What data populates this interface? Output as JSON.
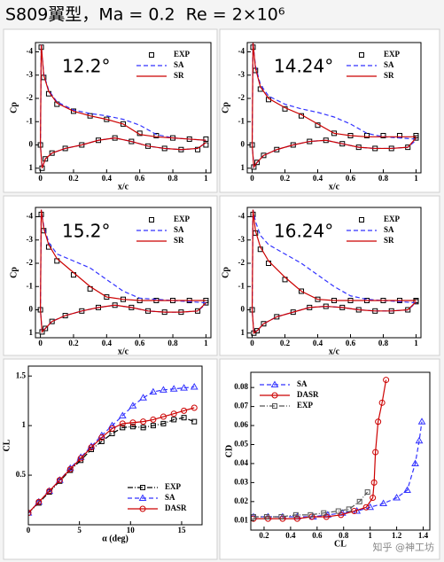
{
  "title": "S809翼型，Ma = 0.2  Re = 2×10⁶",
  "watermark": "知乎 @神工坊",
  "chart_data": [
    {
      "type": "line",
      "annotation": "12.2°",
      "xlabel": "x/c",
      "ylabel": "Cp",
      "legend": "upper right",
      "xlim": [
        -0.03,
        1.03
      ],
      "xticks": [
        0,
        0.2,
        0.4,
        0.6,
        0.8,
        1
      ],
      "ylim": [
        1.2,
        -4.4
      ],
      "yticks": [
        -4,
        -3,
        -2,
        -1,
        0,
        1
      ],
      "x": [
        1,
        0.9,
        0.8,
        0.7,
        0.6,
        0.5,
        0.4,
        0.3,
        0.2,
        0.1,
        0.05,
        0.02,
        0.005,
        0,
        0.01,
        0.03,
        0.07,
        0.15,
        0.25,
        0.35,
        0.45,
        0.55,
        0.65,
        0.75,
        0.85,
        0.95,
        1
      ],
      "series": [
        {
          "name": "EXP",
          "color": "#000000",
          "line": "none",
          "marker": "square",
          "values": [
            -0.25,
            -0.25,
            -0.3,
            -0.4,
            -0.5,
            -0.9,
            -1.1,
            -1.25,
            -1.45,
            -1.75,
            -2.2,
            -2.9,
            -4.2,
            0,
            1,
            0.6,
            0.35,
            0.15,
            0,
            -0.2,
            -0.3,
            -0.15,
            0.05,
            0.15,
            0.2,
            0.2,
            0
          ]
        },
        {
          "name": "SA",
          "color": "#3333ff",
          "line": "dash",
          "marker": "none",
          "values": [
            -0.2,
            -0.25,
            -0.3,
            -0.45,
            -0.85,
            -1.1,
            -1.25,
            -1.35,
            -1.5,
            -1.85,
            -2.35,
            -3.05,
            -4.3,
            0,
            1,
            0.6,
            0.35,
            0.15,
            0,
            -0.2,
            -0.3,
            -0.15,
            0.05,
            0.15,
            0.2,
            0.15,
            -0.1
          ]
        },
        {
          "name": "SR",
          "color": "#cc0000",
          "line": "solid",
          "marker": "none",
          "values": [
            -0.2,
            -0.25,
            -0.3,
            -0.35,
            -0.45,
            -0.9,
            -1.1,
            -1.25,
            -1.45,
            -1.8,
            -2.3,
            -3.0,
            -4.3,
            0,
            1,
            0.6,
            0.35,
            0.15,
            0,
            -0.2,
            -0.3,
            -0.15,
            0.05,
            0.15,
            0.2,
            0.15,
            -0.1
          ]
        }
      ]
    },
    {
      "type": "line",
      "annotation": "14.24°",
      "xlabel": "x/c",
      "ylabel": "Cp",
      "legend": "upper right",
      "xlim": [
        -0.03,
        1.03
      ],
      "xticks": [
        0,
        0.2,
        0.4,
        0.6,
        0.8,
        1
      ],
      "ylim": [
        1.2,
        -4.4
      ],
      "yticks": [
        -4,
        -3,
        -2,
        -1,
        0,
        1
      ],
      "x": [
        1,
        0.9,
        0.8,
        0.7,
        0.6,
        0.5,
        0.4,
        0.3,
        0.2,
        0.1,
        0.05,
        0.02,
        0.005,
        0,
        0.01,
        0.03,
        0.07,
        0.15,
        0.25,
        0.35,
        0.45,
        0.55,
        0.65,
        0.75,
        0.85,
        0.95,
        1
      ],
      "series": [
        {
          "name": "EXP",
          "color": "#000000",
          "line": "none",
          "marker": "square",
          "values": [
            -0.4,
            -0.4,
            -0.4,
            -0.4,
            -0.4,
            -0.5,
            -0.85,
            -1.25,
            -1.55,
            -1.95,
            -2.4,
            -3.2,
            -4.2,
            0,
            0.95,
            0.75,
            0.45,
            0.2,
            0,
            -0.15,
            -0.2,
            -0.05,
            0.1,
            0.15,
            0.15,
            0.1,
            -0.3
          ]
        },
        {
          "name": "SA",
          "color": "#3333ff",
          "line": "dash",
          "marker": "none",
          "values": [
            -0.25,
            -0.3,
            -0.35,
            -0.5,
            -0.9,
            -1.2,
            -1.4,
            -1.55,
            -1.75,
            -2.1,
            -2.6,
            -3.4,
            -4.4,
            0,
            0.95,
            0.75,
            0.45,
            0.2,
            0,
            -0.15,
            -0.2,
            -0.05,
            0.1,
            0.15,
            0.15,
            0.1,
            -0.2
          ]
        },
        {
          "name": "SR",
          "color": "#cc0000",
          "line": "solid",
          "marker": "none",
          "values": [
            -0.35,
            -0.35,
            -0.35,
            -0.35,
            -0.4,
            -0.5,
            -0.9,
            -1.3,
            -1.6,
            -2.0,
            -2.5,
            -3.3,
            -4.4,
            0,
            0.95,
            0.75,
            0.45,
            0.2,
            0,
            -0.15,
            -0.2,
            -0.05,
            0.1,
            0.15,
            0.15,
            0.1,
            -0.3
          ]
        }
      ]
    },
    {
      "type": "line",
      "annotation": "15.2°",
      "xlabel": "x/c",
      "ylabel": "Cp",
      "legend": "upper right",
      "xlim": [
        -0.03,
        1.03
      ],
      "xticks": [
        0,
        0.2,
        0.4,
        0.6,
        0.8,
        1
      ],
      "ylim": [
        1.2,
        -4.4
      ],
      "yticks": [
        -4,
        -3,
        -2,
        -1,
        0,
        1
      ],
      "x": [
        1,
        0.9,
        0.8,
        0.7,
        0.6,
        0.5,
        0.4,
        0.3,
        0.2,
        0.1,
        0.05,
        0.02,
        0.005,
        0,
        0.01,
        0.03,
        0.07,
        0.15,
        0.25,
        0.35,
        0.45,
        0.55,
        0.65,
        0.75,
        0.85,
        0.95,
        1
      ],
      "series": [
        {
          "name": "EXP",
          "color": "#000000",
          "line": "none",
          "marker": "square",
          "values": [
            -0.4,
            -0.4,
            -0.4,
            -0.4,
            -0.4,
            -0.45,
            -0.55,
            -0.9,
            -1.5,
            -2.1,
            -2.7,
            -3.4,
            -4.1,
            0,
            0.95,
            0.8,
            0.5,
            0.25,
            0.05,
            -0.1,
            -0.2,
            -0.1,
            0.05,
            0.1,
            0.1,
            0.05,
            -0.3
          ]
        },
        {
          "name": "SA",
          "color": "#3333ff",
          "line": "dash",
          "marker": "none",
          "values": [
            -0.3,
            -0.35,
            -0.4,
            -0.45,
            -0.5,
            -0.8,
            -1.3,
            -1.8,
            -2.1,
            -2.4,
            -2.9,
            -3.6,
            -4.3,
            0,
            0.95,
            0.8,
            0.5,
            0.25,
            0.05,
            -0.1,
            -0.2,
            -0.1,
            0.05,
            0.1,
            0.1,
            0.05,
            -0.25
          ]
        },
        {
          "name": "SR",
          "color": "#cc0000",
          "line": "solid",
          "marker": "none",
          "values": [
            -0.4,
            -0.4,
            -0.4,
            -0.4,
            -0.4,
            -0.45,
            -0.55,
            -1.0,
            -1.6,
            -2.2,
            -2.8,
            -3.5,
            -4.3,
            0,
            0.95,
            0.8,
            0.5,
            0.25,
            0.05,
            -0.1,
            -0.2,
            -0.1,
            0.05,
            0.1,
            0.1,
            0.05,
            -0.3
          ]
        }
      ]
    },
    {
      "type": "line",
      "annotation": "16.24°",
      "xlabel": "x/c",
      "ylabel": "Cp",
      "legend": "upper right",
      "xlim": [
        -0.03,
        1.03
      ],
      "xticks": [
        0,
        0.2,
        0.4,
        0.6,
        0.8,
        1
      ],
      "ylim": [
        1.2,
        -4.4
      ],
      "yticks": [
        -4,
        -3,
        -2,
        -1,
        0,
        1
      ],
      "x": [
        1,
        0.9,
        0.8,
        0.7,
        0.6,
        0.5,
        0.4,
        0.3,
        0.2,
        0.1,
        0.05,
        0.02,
        0.005,
        0,
        0.01,
        0.03,
        0.07,
        0.15,
        0.25,
        0.35,
        0.45,
        0.55,
        0.65,
        0.75,
        0.85,
        0.95,
        1
      ],
      "series": [
        {
          "name": "EXP",
          "color": "#000000",
          "line": "none",
          "marker": "square",
          "values": [
            -0.4,
            -0.4,
            -0.4,
            -0.4,
            -0.4,
            -0.4,
            -0.45,
            -0.8,
            -1.3,
            -2.0,
            -2.6,
            -3.3,
            -4.1,
            0,
            1,
            0.9,
            0.6,
            0.3,
            0.1,
            -0.1,
            -0.15,
            -0.1,
            0,
            0.05,
            0.05,
            0,
            -0.35
          ]
        },
        {
          "name": "SA",
          "color": "#3333ff",
          "line": "dash",
          "marker": "none",
          "values": [
            -0.3,
            -0.35,
            -0.4,
            -0.45,
            -0.6,
            -1.0,
            -1.5,
            -2.0,
            -2.4,
            -2.8,
            -3.2,
            -3.8,
            -4.3,
            0,
            1,
            0.9,
            0.6,
            0.3,
            0.1,
            -0.1,
            -0.15,
            -0.1,
            0,
            0.05,
            0.05,
            0,
            -0.3
          ]
        },
        {
          "name": "SR",
          "color": "#cc0000",
          "line": "solid",
          "marker": "none",
          "values": [
            -0.4,
            -0.4,
            -0.4,
            -0.4,
            -0.4,
            -0.4,
            -0.45,
            -0.8,
            -1.4,
            -2.1,
            -2.7,
            -3.4,
            -4.3,
            0,
            1,
            0.9,
            0.6,
            0.3,
            0.1,
            -0.1,
            -0.15,
            -0.1,
            0,
            0.05,
            0.05,
            0,
            -0.35
          ]
        }
      ]
    },
    {
      "type": "line",
      "xlabel": "α (deg)",
      "ylabel": "CL",
      "legend": "lower right",
      "xlim": [
        0,
        17
      ],
      "xticks": [
        0,
        5,
        10,
        15
      ],
      "ylim": [
        0,
        1.6
      ],
      "yticks": [
        0.5,
        1,
        1.5
      ],
      "x": [
        0,
        1.02,
        2.05,
        3.07,
        4.1,
        5.13,
        6.16,
        7.18,
        8.2,
        9.22,
        10.23,
        11.24,
        12.22,
        13.22,
        14.24,
        15.23,
        16.24
      ],
      "series": [
        {
          "name": "EXP",
          "color": "#000000",
          "line": "dashdot",
          "marker": "square",
          "values": [
            0.12,
            0.22,
            0.33,
            0.44,
            0.55,
            0.65,
            0.76,
            0.84,
            0.92,
            0.98,
            0.99,
            0.98,
            1.0,
            1.02,
            1.06,
            1.08,
            1.04
          ]
        },
        {
          "name": "SA",
          "color": "#3333ff",
          "line": "dash",
          "marker": "triangle",
          "values": [
            0.12,
            0.23,
            0.34,
            0.45,
            0.57,
            0.68,
            0.79,
            0.9,
            1.0,
            1.1,
            1.2,
            1.28,
            1.34,
            1.36,
            1.37,
            1.38,
            1.39
          ]
        },
        {
          "name": "DASR",
          "color": "#cc0000",
          "line": "solid",
          "marker": "circle",
          "values": [
            0.12,
            0.23,
            0.34,
            0.45,
            0.56,
            0.67,
            0.78,
            0.88,
            0.97,
            1.02,
            1.03,
            1.04,
            1.06,
            1.09,
            1.12,
            1.15,
            1.18
          ]
        }
      ]
    },
    {
      "type": "line",
      "xlabel": "CL",
      "ylabel": "CD",
      "legend": "upper left",
      "xlim": [
        0.1,
        1.45
      ],
      "xticks": [
        0.2,
        0.4,
        0.6,
        0.8,
        1,
        1.2,
        1.4
      ],
      "ylim": [
        0.005,
        0.088
      ],
      "yticks": [
        0.01,
        0.02,
        0.03,
        0.04,
        0.05,
        0.06,
        0.07,
        0.08
      ],
      "series": [
        {
          "name": "SA",
          "color": "#3333ff",
          "line": "dash",
          "marker": "triangle",
          "x": [
            0.12,
            0.23,
            0.34,
            0.45,
            0.57,
            0.68,
            0.79,
            0.9,
            1.0,
            1.1,
            1.2,
            1.28,
            1.34,
            1.37,
            1.39
          ],
          "values": [
            0.012,
            0.012,
            0.012,
            0.012,
            0.012,
            0.013,
            0.014,
            0.015,
            0.017,
            0.019,
            0.022,
            0.026,
            0.04,
            0.052,
            0.062
          ]
        },
        {
          "name": "DASR",
          "color": "#cc0000",
          "line": "solid",
          "marker": "circle",
          "x": [
            0.12,
            0.23,
            0.34,
            0.45,
            0.56,
            0.67,
            0.78,
            0.88,
            0.97,
            1.02,
            1.03,
            1.04,
            1.06,
            1.09,
            1.12
          ],
          "values": [
            0.011,
            0.011,
            0.011,
            0.011,
            0.012,
            0.012,
            0.013,
            0.015,
            0.017,
            0.022,
            0.03,
            0.046,
            0.062,
            0.072,
            0.084
          ]
        },
        {
          "name": "EXP",
          "color": "#555555",
          "line": "dashdot",
          "marker": "square",
          "x": [
            0.12,
            0.22,
            0.33,
            0.44,
            0.55,
            0.65,
            0.76,
            0.84,
            0.92,
            0.98
          ],
          "values": [
            0.012,
            0.012,
            0.012,
            0.013,
            0.013,
            0.014,
            0.015,
            0.016,
            0.02,
            0.025
          ]
        }
      ]
    }
  ]
}
